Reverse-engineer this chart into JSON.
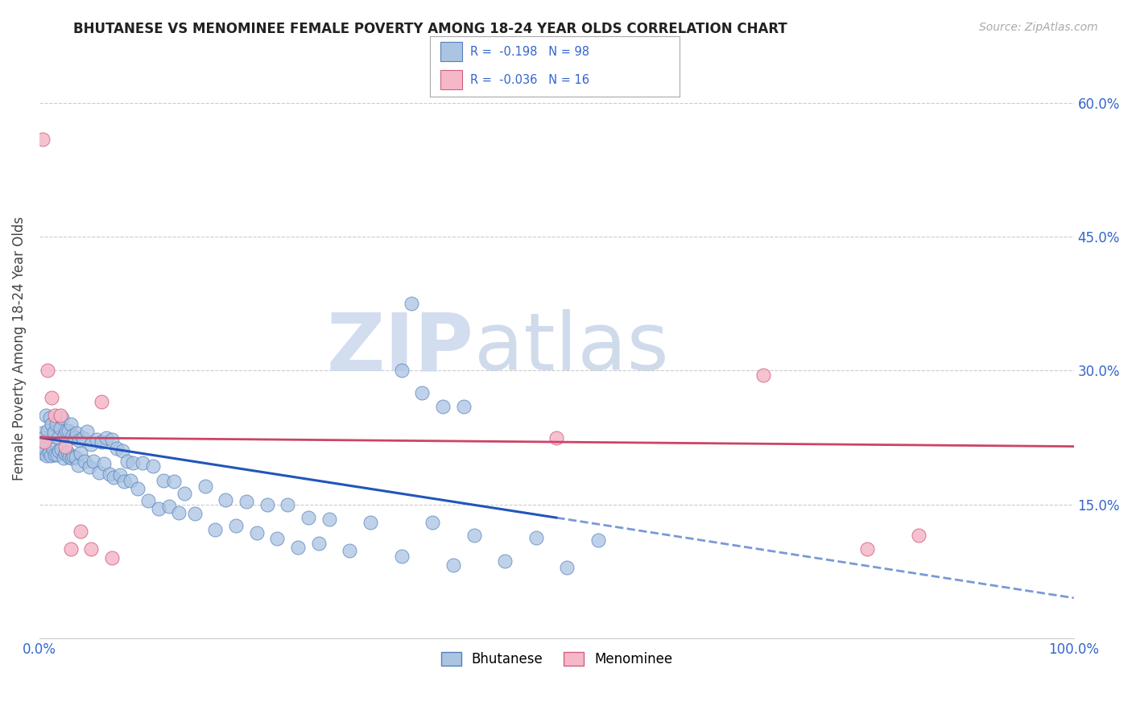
{
  "title": "BHUTANESE VS MENOMINEE FEMALE POVERTY AMONG 18-24 YEAR OLDS CORRELATION CHART",
  "source": "Source: ZipAtlas.com",
  "ylabel": "Female Poverty Among 18-24 Year Olds",
  "xlim": [
    0.0,
    1.0
  ],
  "ylim": [
    0.0,
    0.65
  ],
  "x_ticks": [
    0.0,
    0.2,
    0.4,
    0.6,
    0.8,
    1.0
  ],
  "x_tick_labels": [
    "0.0%",
    "",
    "",
    "",
    "",
    "100.0%"
  ],
  "y_ticks": [
    0.0,
    0.15,
    0.3,
    0.45,
    0.6
  ],
  "y_tick_labels_right": [
    "",
    "15.0%",
    "30.0%",
    "45.0%",
    "60.0%"
  ],
  "bhutanese_color": "#aac4e2",
  "menominee_color": "#f5b8c8",
  "bhutanese_edge": "#5580bb",
  "menominee_edge": "#d06080",
  "regression_blue": "#2255bb",
  "regression_pink": "#cc4466",
  "R_bhutanese": -0.198,
  "N_bhutanese": 98,
  "R_menominee": -0.036,
  "N_menominee": 16,
  "watermark_zip": "ZIP",
  "watermark_atlas": "atlas",
  "watermark_color_zip": "#d0ddf0",
  "watermark_color_atlas": "#c5d5e8",
  "bhutanese_x": [
    0.002,
    0.003,
    0.004,
    0.005,
    0.006,
    0.007,
    0.008,
    0.009,
    0.01,
    0.011,
    0.012,
    0.013,
    0.014,
    0.015,
    0.016,
    0.017,
    0.018,
    0.019,
    0.02,
    0.021,
    0.022,
    0.023,
    0.024,
    0.025,
    0.026,
    0.027,
    0.028,
    0.029,
    0.03,
    0.031,
    0.032,
    0.033,
    0.034,
    0.035,
    0.036,
    0.037,
    0.038,
    0.04,
    0.042,
    0.044,
    0.046,
    0.048,
    0.05,
    0.052,
    0.055,
    0.058,
    0.06,
    0.062,
    0.065,
    0.068,
    0.07,
    0.072,
    0.075,
    0.078,
    0.08,
    0.082,
    0.085,
    0.088,
    0.09,
    0.095,
    0.1,
    0.105,
    0.11,
    0.115,
    0.12,
    0.125,
    0.13,
    0.135,
    0.14,
    0.15,
    0.16,
    0.17,
    0.18,
    0.19,
    0.2,
    0.21,
    0.22,
    0.23,
    0.24,
    0.25,
    0.26,
    0.27,
    0.28,
    0.3,
    0.32,
    0.35,
    0.38,
    0.4,
    0.42,
    0.45,
    0.48,
    0.51,
    0.54,
    0.35,
    0.36,
    0.37,
    0.39,
    0.41
  ],
  "bhutanese_y": [
    0.22,
    0.215,
    0.21,
    0.225,
    0.23,
    0.22,
    0.215,
    0.218,
    0.222,
    0.225,
    0.228,
    0.22,
    0.215,
    0.218,
    0.222,
    0.22,
    0.215,
    0.218,
    0.22,
    0.222,
    0.225,
    0.22,
    0.218,
    0.215,
    0.218,
    0.22,
    0.215,
    0.218,
    0.22,
    0.218,
    0.215,
    0.212,
    0.21,
    0.215,
    0.212,
    0.208,
    0.212,
    0.215,
    0.21,
    0.208,
    0.212,
    0.208,
    0.205,
    0.208,
    0.205,
    0.2,
    0.205,
    0.208,
    0.205,
    0.2,
    0.198,
    0.2,
    0.198,
    0.195,
    0.192,
    0.19,
    0.188,
    0.185,
    0.182,
    0.178,
    0.175,
    0.172,
    0.168,
    0.165,
    0.162,
    0.16,
    0.158,
    0.155,
    0.152,
    0.148,
    0.145,
    0.142,
    0.14,
    0.138,
    0.135,
    0.132,
    0.13,
    0.128,
    0.125,
    0.122,
    0.12,
    0.118,
    0.115,
    0.112,
    0.11,
    0.108,
    0.105,
    0.102,
    0.1,
    0.098,
    0.095,
    0.093,
    0.09,
    0.295,
    0.38,
    0.27,
    0.265,
    0.255
  ],
  "bhutanese_y_noise": [
    0.01,
    -0.008,
    0.015,
    -0.012,
    0.02,
    -0.015,
    0.018,
    -0.01,
    0.025,
    -0.02,
    0.012,
    -0.008,
    0.016,
    -0.012,
    0.018,
    -0.014,
    0.01,
    -0.008,
    0.015,
    -0.01,
    0.022,
    -0.018,
    0.01,
    -0.008,
    0.015,
    -0.012,
    0.018,
    -0.015,
    0.02,
    -0.016,
    0.012,
    -0.008,
    0.015,
    -0.012,
    0.018,
    -0.014,
    0.01,
    -0.008,
    0.015,
    -0.01,
    0.02,
    -0.016,
    0.012,
    -0.01,
    0.018,
    -0.014,
    0.015,
    -0.012,
    0.02,
    -0.016,
    0.025,
    -0.02,
    0.015,
    -0.012,
    0.018,
    -0.014,
    0.01,
    -0.008,
    0.015,
    -0.01,
    0.022,
    -0.018,
    0.025,
    -0.02,
    0.015,
    -0.012,
    0.018,
    -0.014,
    0.01,
    -0.008,
    0.025,
    -0.02,
    0.015,
    -0.012,
    0.018,
    -0.014,
    0.02,
    -0.016,
    0.025,
    -0.02,
    0.015,
    -0.012,
    0.018,
    -0.014,
    0.02,
    -0.016,
    0.025,
    -0.02,
    0.015,
    -0.012,
    0.018,
    -0.014,
    0.02,
    0.005,
    -0.005,
    0.005,
    -0.005,
    0.005
  ],
  "menominee_x": [
    0.003,
    0.005,
    0.008,
    0.012,
    0.015,
    0.02,
    0.025,
    0.03,
    0.04,
    0.05,
    0.06,
    0.07,
    0.5,
    0.7,
    0.8,
    0.85
  ],
  "menominee_y": [
    0.56,
    0.22,
    0.3,
    0.27,
    0.25,
    0.25,
    0.215,
    0.1,
    0.12,
    0.1,
    0.265,
    0.09,
    0.225,
    0.295,
    0.1,
    0.115
  ]
}
